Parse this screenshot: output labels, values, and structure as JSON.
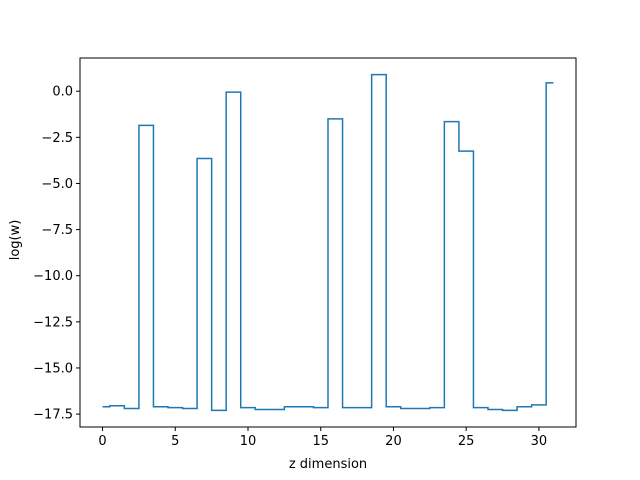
{
  "chart_data": {
    "type": "line",
    "drawstyle": "steps-mid",
    "title": "",
    "xlabel": "z dimension",
    "ylabel": "log(w)",
    "xlim": [
      -1.55,
      32.55
    ],
    "ylim": [
      -18.2,
      1.8
    ],
    "xticks": [
      0,
      5,
      10,
      15,
      20,
      25,
      30
    ],
    "xtick_labels": [
      "0",
      "5",
      "10",
      "15",
      "20",
      "25",
      "30"
    ],
    "yticks": [
      0.0,
      -2.5,
      -5.0,
      -7.5,
      -10.0,
      -12.5,
      -15.0,
      -17.5
    ],
    "ytick_labels": [
      "0.0",
      "−2.5",
      "−5.0",
      "−7.5",
      "−10.0",
      "−12.5",
      "−15.0",
      "−17.5"
    ],
    "grid": false,
    "line_color": "#1f77b4",
    "series": [
      {
        "x": [
          0,
          1,
          2,
          3,
          4,
          5,
          6,
          7,
          8,
          9,
          10,
          11,
          12,
          13,
          14,
          15,
          16,
          17,
          18,
          19,
          20,
          21,
          22,
          23,
          24,
          25,
          26,
          27,
          28,
          29,
          30,
          31
        ],
        "values": [
          -17.1,
          -17.05,
          -17.2,
          -1.85,
          -17.1,
          -17.15,
          -17.2,
          -3.65,
          -17.3,
          -0.05,
          -17.15,
          -17.25,
          -17.25,
          -17.1,
          -17.1,
          -17.15,
          -1.5,
          -17.15,
          -17.15,
          0.9,
          -17.1,
          -17.2,
          -17.2,
          -17.15,
          -1.65,
          -3.25,
          -17.15,
          -17.25,
          -17.3,
          -17.1,
          -17.0,
          0.45
        ]
      }
    ]
  }
}
